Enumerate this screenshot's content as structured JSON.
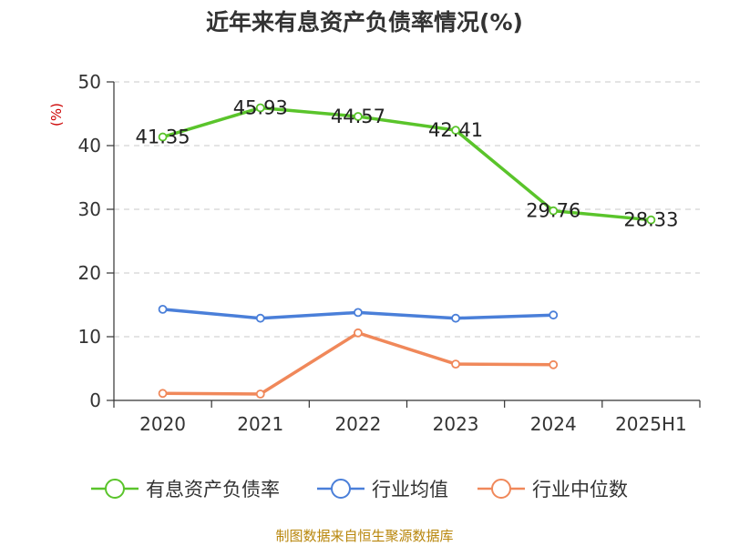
{
  "chart_data": {
    "type": "line",
    "title": "近年来有息资产负债率情况(%)",
    "ylabel": "(%)",
    "xlabel": "",
    "categories": [
      "2020",
      "2021",
      "2022",
      "2023",
      "2024",
      "2025H1"
    ],
    "ylim": [
      0,
      50
    ],
    "yticks": [
      0,
      10,
      20,
      30,
      40,
      50
    ],
    "grid": true,
    "legend_position": "bottom",
    "series": [
      {
        "name": "有息资产负债率",
        "color": "#5ac42b",
        "values": [
          41.35,
          45.93,
          44.57,
          42.41,
          29.76,
          28.33
        ],
        "labels": [
          "41.35",
          "45.93",
          "44.57",
          "42.41",
          "29.76",
          "28.33"
        ]
      },
      {
        "name": "行业均值",
        "color": "#4a7fd9",
        "values": [
          14.3,
          12.9,
          13.8,
          12.9,
          13.4,
          null
        ]
      },
      {
        "name": "行业中位数",
        "color": "#f0885a",
        "values": [
          1.1,
          1.0,
          10.6,
          5.7,
          5.6,
          null
        ]
      }
    ]
  },
  "source_text": "制图数据来自恒生聚源数据库"
}
